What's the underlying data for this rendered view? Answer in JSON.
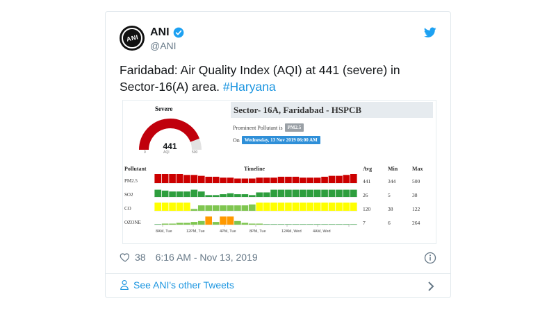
{
  "tweet": {
    "author_name": "ANI",
    "handle": "@ANI",
    "avatar_text": "ANI",
    "text_main": "Faridabad: Air Quality Index (AQI) at 441 (severe) in Sector-16(A) area. ",
    "hashtag": "#Haryana",
    "likes": "38",
    "timestamp": "6:16 AM - Nov 13, 2019",
    "other_tweets_label": "See ANI's other Tweets"
  },
  "embed": {
    "severity": "Severe",
    "aqi_value": "441",
    "aqi_label": "AQI",
    "gauge_min": "0",
    "gauge_max": "500",
    "gauge_level": 0.882,
    "station": "Sector- 16A, Faridabad - HSPCB",
    "prominent_label": "Prominent Pollutant is",
    "prominent_value": "PM2.5",
    "on_label": "On",
    "on_value": "Wednesday, 13 Nov 2019 06:00 AM",
    "headers": {
      "pollutant": "Pollutant",
      "timeline": "Timeline",
      "avg": "Avg",
      "min": "Min",
      "max": "Max"
    },
    "rows": [
      {
        "name": "PM2.5",
        "avg": "441",
        "min": "344",
        "max": "500"
      },
      {
        "name": "SO2",
        "avg": "26",
        "min": "5",
        "max": "38"
      },
      {
        "name": "CO",
        "avg": "120",
        "min": "38",
        "max": "122"
      },
      {
        "name": "OZONE",
        "avg": "7",
        "min": "6",
        "max": "264"
      }
    ],
    "time_labels": [
      "8AM, Tue",
      "12PM, Tue",
      "4PM, Tue",
      "8PM, Tue",
      "12AM, Wed",
      "4AM, Wed"
    ]
  },
  "chart_data": {
    "type": "bar",
    "title": "Timeline",
    "colors": {
      "severe": "#cc0000",
      "satisfactory": "#7fc650",
      "good": "#2e9e3e",
      "moderate": "#ffff00",
      "poor": "#ff9900",
      "very_poor": "#cc0000"
    },
    "series": [
      {
        "name": "PM2.5",
        "levels": [
          1,
          1,
          1,
          1,
          0.9,
          0.9,
          0.8,
          0.7,
          0.7,
          0.6,
          0.6,
          0.5,
          0.5,
          0.5,
          0.6,
          0.6,
          0.6,
          0.7,
          0.7,
          0.7,
          0.6,
          0.6,
          0.6,
          0.7,
          0.8,
          0.8,
          0.9,
          1
        ],
        "colors": [
          "severe",
          "severe",
          "severe",
          "severe",
          "severe",
          "severe",
          "severe",
          "severe",
          "severe",
          "severe",
          "severe",
          "severe",
          "severe",
          "severe",
          "severe",
          "severe",
          "severe",
          "severe",
          "severe",
          "severe",
          "severe",
          "severe",
          "severe",
          "severe",
          "severe",
          "severe",
          "severe",
          "severe"
        ]
      },
      {
        "name": "SO2",
        "levels": [
          0.8,
          0.7,
          0.6,
          0.6,
          0.6,
          0.8,
          0.6,
          0.2,
          0.2,
          0.3,
          0.4,
          0.3,
          0.3,
          0.2,
          0.5,
          0.5,
          0.8,
          0.8,
          0.8,
          0.8,
          0.8,
          0.8,
          0.8,
          0.8,
          0.8,
          0.8,
          0.8,
          0.8
        ],
        "colors": [
          "good",
          "good",
          "good",
          "good",
          "good",
          "good",
          "good",
          "good",
          "good",
          "good",
          "good",
          "good",
          "good",
          "good",
          "good",
          "good",
          "good",
          "good",
          "good",
          "good",
          "good",
          "good",
          "good",
          "good",
          "good",
          "good",
          "good",
          "good"
        ]
      },
      {
        "name": "CO",
        "levels": [
          0.9,
          0.9,
          0.9,
          0.9,
          0.9,
          0.2,
          0.6,
          0.6,
          0.6,
          0.6,
          0.6,
          0.6,
          0.6,
          0.7,
          0.9,
          0.9,
          0.9,
          0.9,
          0.9,
          0.9,
          0.9,
          0.9,
          0.9,
          0.9,
          0.9,
          0.9,
          0.9,
          0.9
        ],
        "colors": [
          "moderate",
          "moderate",
          "moderate",
          "moderate",
          "moderate",
          "satisfactory",
          "satisfactory",
          "satisfactory",
          "satisfactory",
          "satisfactory",
          "satisfactory",
          "satisfactory",
          "satisfactory",
          "satisfactory",
          "moderate",
          "moderate",
          "moderate",
          "moderate",
          "moderate",
          "moderate",
          "moderate",
          "moderate",
          "moderate",
          "moderate",
          "moderate",
          "moderate",
          "moderate",
          "moderate"
        ]
      },
      {
        "name": "OZONE",
        "levels": [
          0,
          0.1,
          0.1,
          0.2,
          0.2,
          0.3,
          0.4,
          0.9,
          0.3,
          0.9,
          0.9,
          0.4,
          0.2,
          0.1,
          0.1,
          0,
          0,
          0,
          0,
          0,
          0,
          0,
          0,
          0,
          0,
          0,
          0,
          0
        ],
        "colors": [
          "good",
          "satisfactory",
          "satisfactory",
          "satisfactory",
          "satisfactory",
          "satisfactory",
          "satisfactory",
          "poor",
          "satisfactory",
          "poor",
          "poor",
          "satisfactory",
          "satisfactory",
          "satisfactory",
          "satisfactory",
          "good",
          "good",
          "good",
          "good",
          "good",
          "good",
          "good",
          "good",
          "good",
          "good",
          "good",
          "good",
          "good"
        ]
      }
    ]
  }
}
